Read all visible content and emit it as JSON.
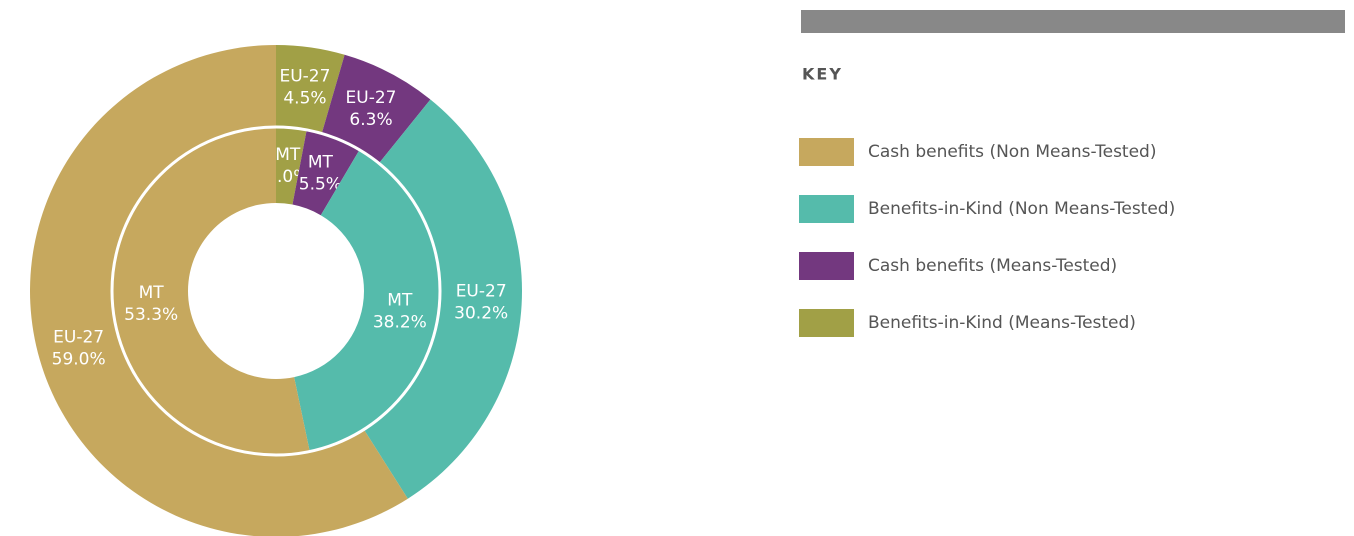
{
  "chart_data": {
    "type": "donut",
    "legend_title": "KEY",
    "categories": [
      "Benefits-in-Kind (Means-Tested)",
      "Cash benefits (Means-Tested)",
      "Benefits-in-Kind (Non Means-Tested)",
      "Cash benefits (Non Means-Tested)"
    ],
    "colors": [
      "#a1a046",
      "#73387f",
      "#55bbab",
      "#c6a85e"
    ],
    "legend_order": [
      3,
      2,
      1,
      0
    ],
    "series": [
      {
        "name": "EU-27",
        "values": [
          4.5,
          6.3,
          30.2,
          59.0
        ],
        "value_labels": [
          "4.5%",
          "6.3%",
          "30.2%",
          "59.0%"
        ]
      },
      {
        "name": "MT",
        "values": [
          3.0,
          5.5,
          38.2,
          53.3
        ],
        "value_labels": [
          "3.0%",
          "5.5%",
          "38.2%",
          "53.3%"
        ]
      }
    ]
  }
}
